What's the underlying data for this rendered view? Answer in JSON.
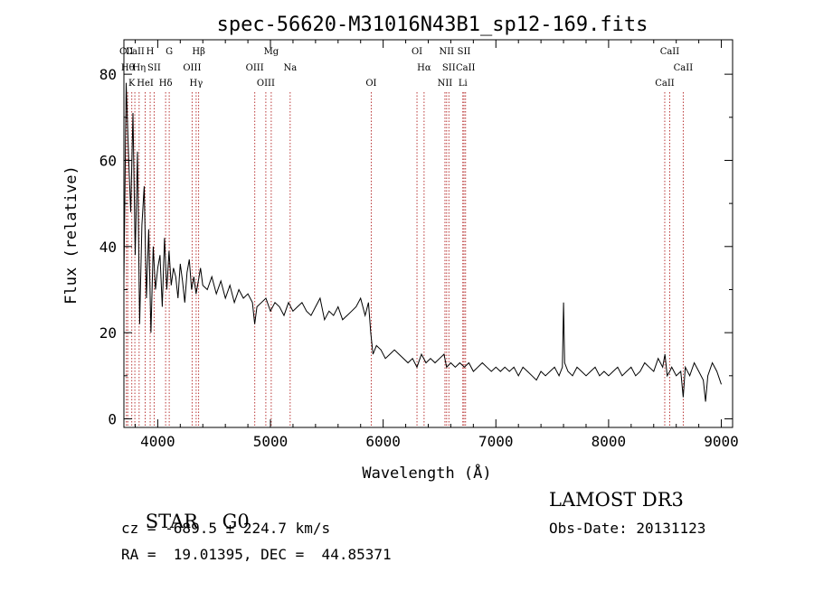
{
  "chart_data": {
    "type": "line",
    "title": "spec-56620-M31016N43B1_sp12-169.fits",
    "xlabel": "Wavelength (Å)",
    "ylabel": "Flux (relative)",
    "xlim": [
      3700,
      9100
    ],
    "ylim": [
      -2,
      88
    ],
    "xticks": [
      4000,
      5000,
      6000,
      7000,
      8000,
      9000
    ],
    "yticks": [
      0,
      20,
      40,
      60,
      80
    ],
    "grid": false,
    "series": [
      {
        "name": "flux",
        "x": [
          3700,
          3720,
          3740,
          3760,
          3780,
          3800,
          3820,
          3840,
          3860,
          3880,
          3900,
          3920,
          3940,
          3960,
          3980,
          4000,
          4020,
          4040,
          4060,
          4080,
          4100,
          4120,
          4140,
          4160,
          4180,
          4200,
          4220,
          4240,
          4260,
          4280,
          4300,
          4320,
          4340,
          4360,
          4380,
          4400,
          4440,
          4480,
          4520,
          4560,
          4600,
          4640,
          4680,
          4720,
          4760,
          4800,
          4840,
          4860,
          4880,
          4920,
          4960,
          5000,
          5040,
          5080,
          5120,
          5160,
          5200,
          5240,
          5280,
          5320,
          5360,
          5400,
          5440,
          5480,
          5520,
          5560,
          5600,
          5640,
          5680,
          5720,
          5760,
          5800,
          5840,
          5870,
          5890,
          5910,
          5940,
          5980,
          6020,
          6060,
          6100,
          6140,
          6180,
          6220,
          6260,
          6300,
          6340,
          6380,
          6420,
          6460,
          6500,
          6540,
          6563,
          6600,
          6640,
          6680,
          6720,
          6760,
          6800,
          6840,
          6880,
          6920,
          6960,
          7000,
          7040,
          7080,
          7120,
          7160,
          7200,
          7240,
          7280,
          7320,
          7360,
          7400,
          7440,
          7480,
          7520,
          7560,
          7590,
          7600,
          7610,
          7640,
          7680,
          7720,
          7760,
          7800,
          7840,
          7880,
          7920,
          7960,
          8000,
          8040,
          8080,
          8120,
          8160,
          8200,
          8240,
          8280,
          8320,
          8360,
          8400,
          8440,
          8480,
          8500,
          8520,
          8542,
          8560,
          8600,
          8640,
          8662,
          8680,
          8720,
          8760,
          8800,
          8840,
          8860,
          8880,
          8920,
          8960,
          9000
        ],
        "y": [
          32,
          78,
          62,
          48,
          71,
          38,
          62,
          22,
          45,
          54,
          28,
          44,
          20,
          40,
          30,
          35,
          38,
          26,
          42,
          30,
          39,
          31,
          35,
          33,
          28,
          36,
          32,
          27,
          34,
          37,
          30,
          33,
          29,
          32,
          35,
          31,
          30,
          33,
          29,
          32,
          28,
          31,
          27,
          30,
          28,
          29,
          27,
          22,
          26,
          27,
          28,
          25,
          27,
          26,
          24,
          27,
          25,
          26,
          27,
          25,
          24,
          26,
          28,
          23,
          25,
          24,
          26,
          23,
          24,
          25,
          26,
          28,
          24,
          27,
          20,
          15,
          17,
          16,
          14,
          15,
          16,
          15,
          14,
          13,
          14,
          12,
          15,
          13,
          14,
          13,
          14,
          15,
          12,
          13,
          12,
          13,
          12,
          13,
          11,
          12,
          13,
          12,
          11,
          12,
          11,
          12,
          11,
          12,
          10,
          12,
          11,
          10,
          9,
          11,
          10,
          11,
          12,
          10,
          12,
          27,
          13,
          11,
          10,
          12,
          11,
          10,
          11,
          12,
          10,
          11,
          10,
          11,
          12,
          10,
          11,
          12,
          10,
          11,
          13,
          12,
          11,
          14,
          12,
          15,
          10,
          11,
          12,
          10,
          11,
          5,
          12,
          10,
          13,
          11,
          9,
          4,
          10,
          13,
          11,
          8
        ]
      }
    ],
    "lines": [
      {
        "label": "CII",
        "wave": 3722
      },
      {
        "label": "Hθ",
        "wave": 3734
      },
      {
        "label": "K",
        "wave": 3770
      },
      {
        "label": "CaII",
        "wave": 3797
      },
      {
        "label": "Hη",
        "wave": 3835
      },
      {
        "label": "HeI",
        "wave": 3889
      },
      {
        "label": "H",
        "wave": 3933
      },
      {
        "label": "SII",
        "wave": 3968
      },
      {
        "label": "Hδ",
        "wave": 4070
      },
      {
        "label": "G",
        "wave": 4102
      },
      {
        "label": "OIII",
        "wave": 4305
      },
      {
        "label": "Hγ",
        "wave": 4341
      },
      {
        "label": "Hβ",
        "wave": 4363
      },
      {
        "label": "OIII",
        "wave": 4861
      },
      {
        "label": "OIII",
        "wave": 4959
      },
      {
        "label": "Mg",
        "wave": 5007
      },
      {
        "label": "Na",
        "wave": 5175
      },
      {
        "label": "OI",
        "wave": 5894
      },
      {
        "label": "OI",
        "wave": 6300
      },
      {
        "label": "Hα",
        "wave": 6363
      },
      {
        "label": "NII",
        "wave": 6548
      },
      {
        "label": "NII",
        "wave": 6563
      },
      {
        "label": "SII",
        "wave": 6583
      },
      {
        "label": "Li",
        "wave": 6707
      },
      {
        "label": "SII",
        "wave": 6717
      },
      {
        "label": "CaII",
        "wave": 6731
      },
      {
        "label": "CaII",
        "wave": 8498
      },
      {
        "label": "CaII",
        "wave": 8542
      },
      {
        "label": "CaII",
        "wave": 8662
      }
    ]
  },
  "info": {
    "class": "STAR",
    "subclass": "G0",
    "survey": "LAMOST DR3",
    "cz": "cz = -689.5 ± 224.7 km/s",
    "obs_date": "Obs-Date: 20131123",
    "radec": "RA =  19.01395, DEC =  44.85371"
  }
}
